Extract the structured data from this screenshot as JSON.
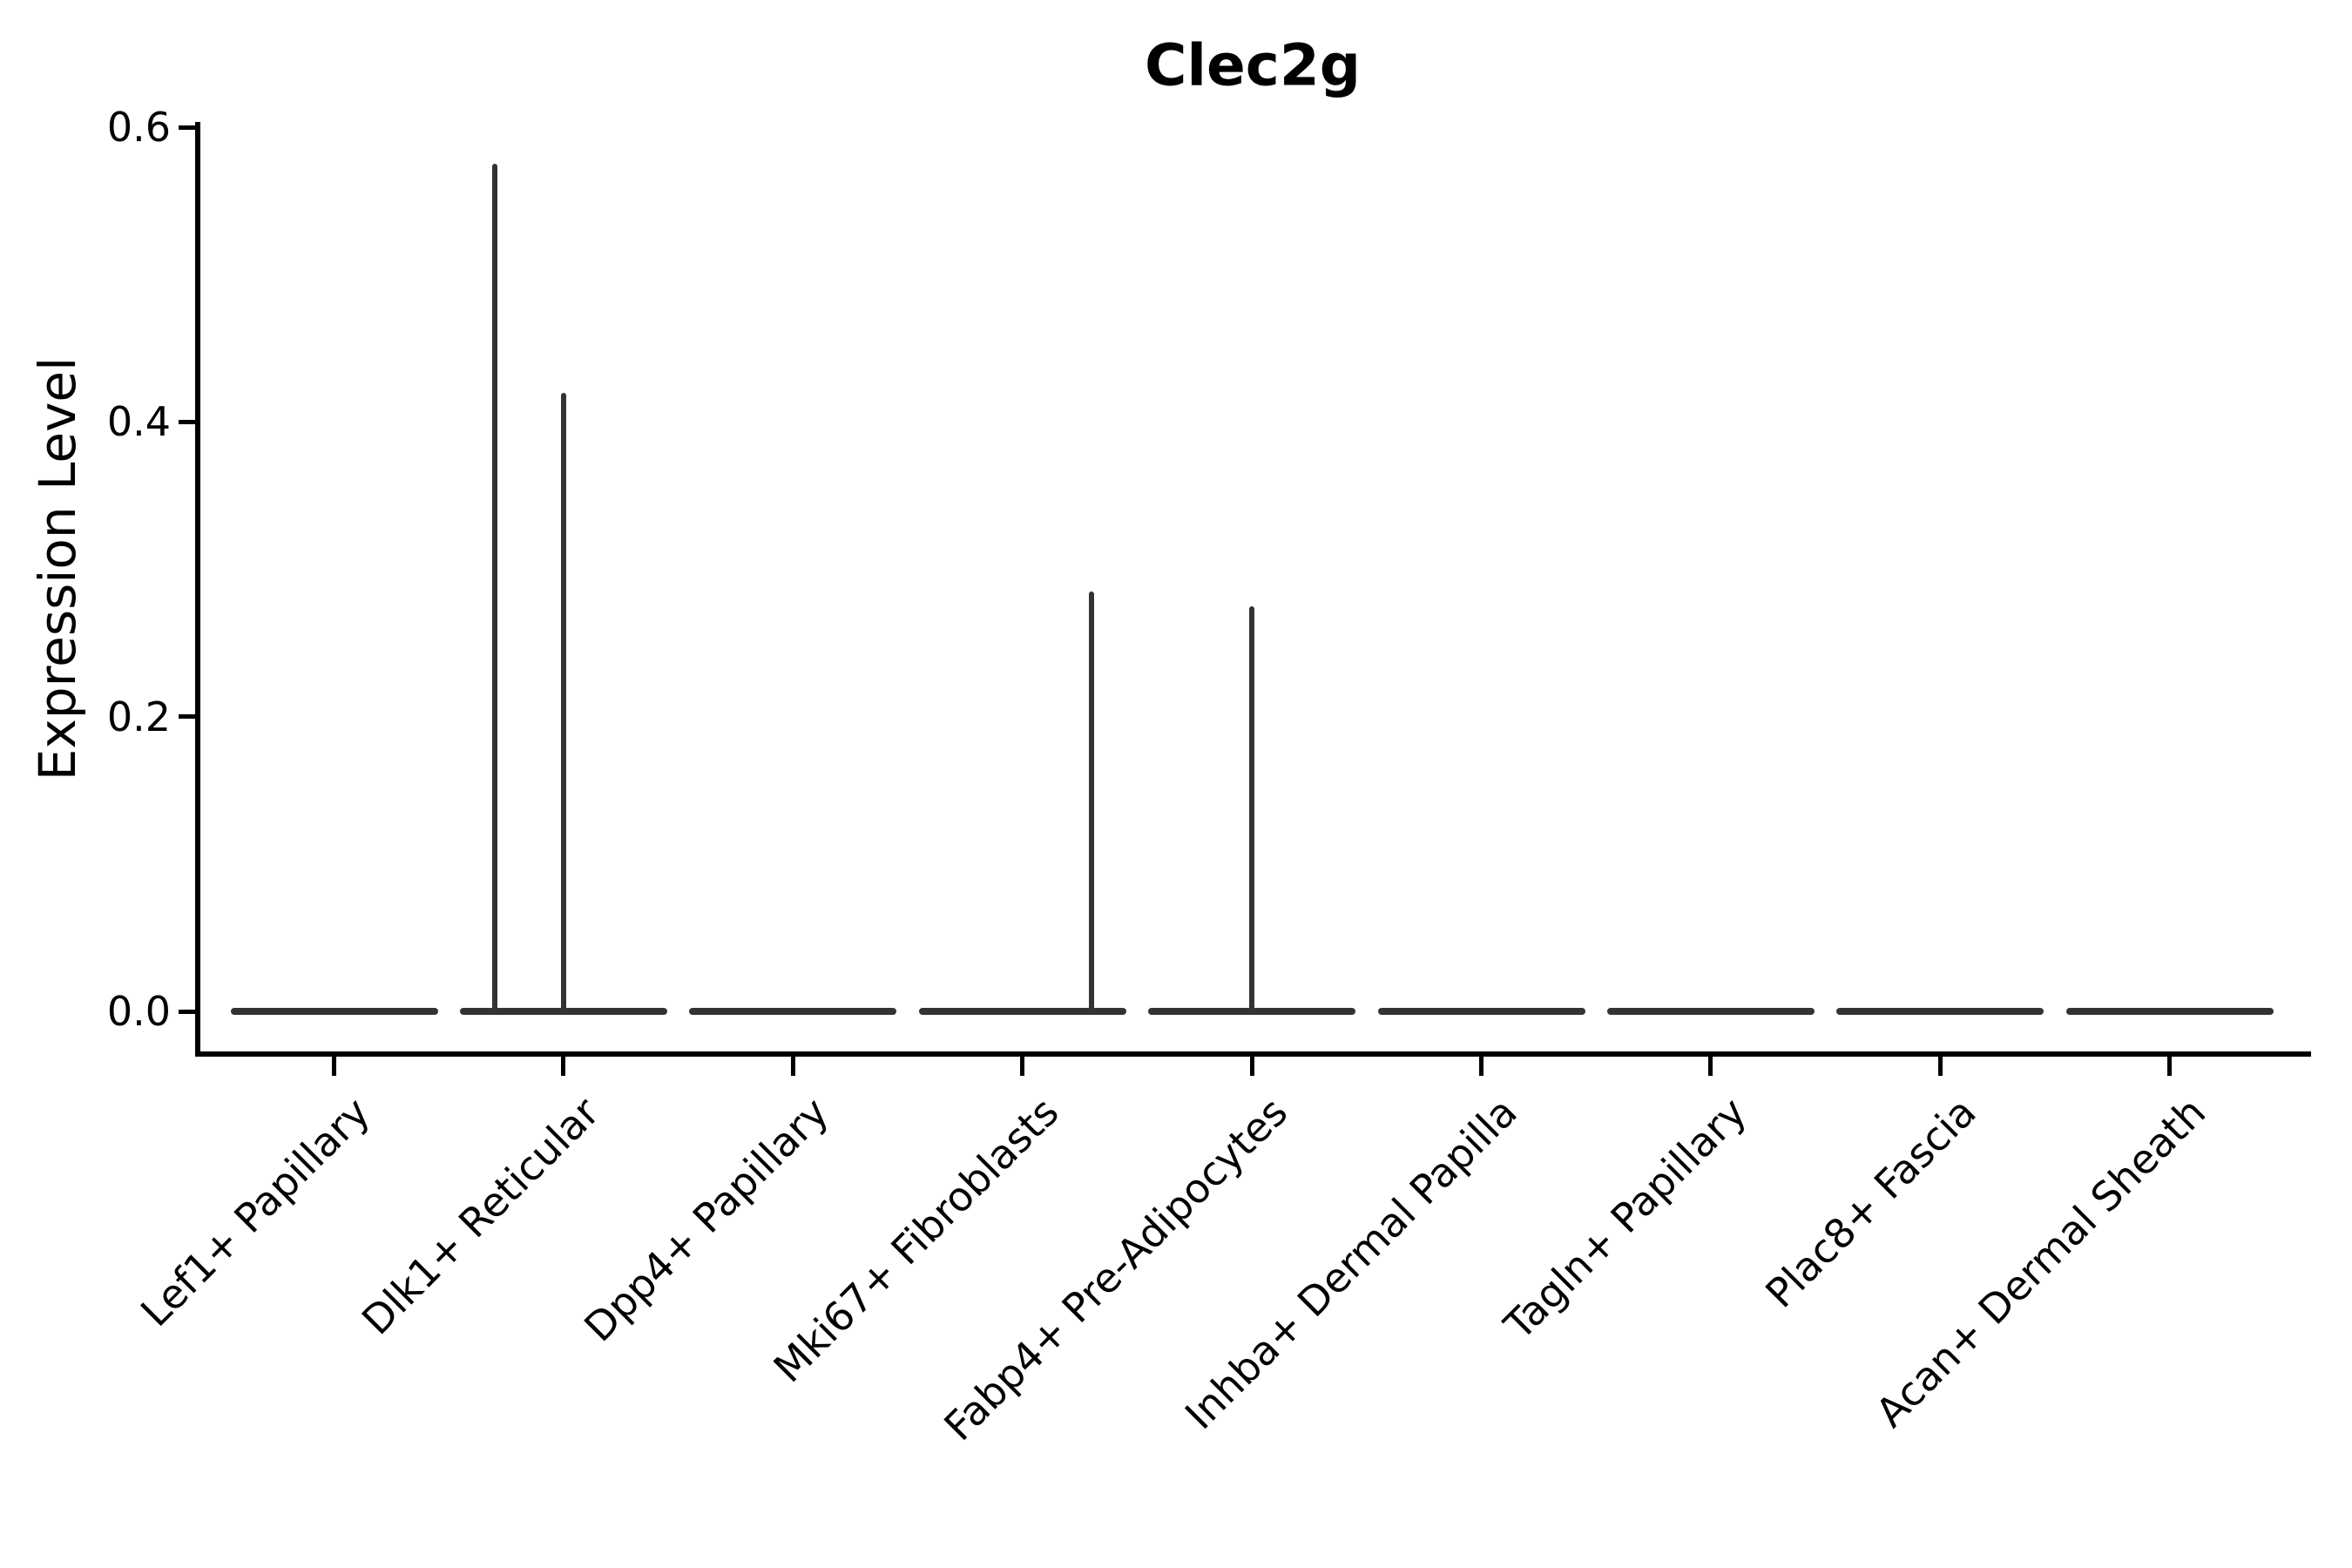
{
  "title": "Clec2g",
  "y_axis": {
    "label": "Expression Level",
    "tick_labels": [
      "0.0",
      "0.2",
      "0.4",
      "0.6"
    ]
  },
  "colors": {
    "violin": "#333333",
    "axis": "#000000",
    "text": "#000000",
    "background": "#ffffff"
  },
  "chart_data": {
    "type": "violin",
    "title": "Clec2g",
    "xlabel": "",
    "ylabel": "Expression Level",
    "ylim": [
      0,
      0.6
    ],
    "yticks": [
      0.0,
      0.2,
      0.4,
      0.6
    ],
    "grid": false,
    "legend": null,
    "x_tick_rotation_deg": 45,
    "categories": [
      "Lef1+ Papillary",
      "Dlk1+ Reticular",
      "Dpp4+ Papillary",
      "Mki67+ Fibroblasts",
      "Fabp4+ Pre-Adipocytes",
      "Inhba+ Dermal Papilla",
      "Tagln+ Papillary",
      "Plac8+ Fascia",
      "Acan+ Dermal Sheath"
    ],
    "violins": [
      {
        "category": "Lef1+ Papillary",
        "baseline_value": 0.0,
        "spikes": []
      },
      {
        "category": "Dlk1+ Reticular",
        "baseline_value": 0.0,
        "spikes": [
          {
            "x_offset": -0.3,
            "value": 0.575
          },
          {
            "x_offset": 0.0,
            "value": 0.42
          }
        ]
      },
      {
        "category": "Dpp4+ Papillary",
        "baseline_value": 0.0,
        "spikes": []
      },
      {
        "category": "Mki67+ Fibroblasts",
        "baseline_value": 0.0,
        "spikes": [
          {
            "x_offset": 0.3,
            "value": 0.285
          }
        ]
      },
      {
        "category": "Fabp4+ Pre-Adipocytes",
        "baseline_value": 0.0,
        "spikes": [
          {
            "x_offset": 0.0,
            "value": 0.275
          }
        ]
      },
      {
        "category": "Inhba+ Dermal Papilla",
        "baseline_value": 0.0,
        "spikes": []
      },
      {
        "category": "Tagln+ Papillary",
        "baseline_value": 0.0,
        "spikes": []
      },
      {
        "category": "Plac8+ Fascia",
        "baseline_value": 0.0,
        "spikes": []
      },
      {
        "category": "Acan+ Dermal Sheath",
        "baseline_value": 0.0,
        "spikes": []
      }
    ]
  }
}
